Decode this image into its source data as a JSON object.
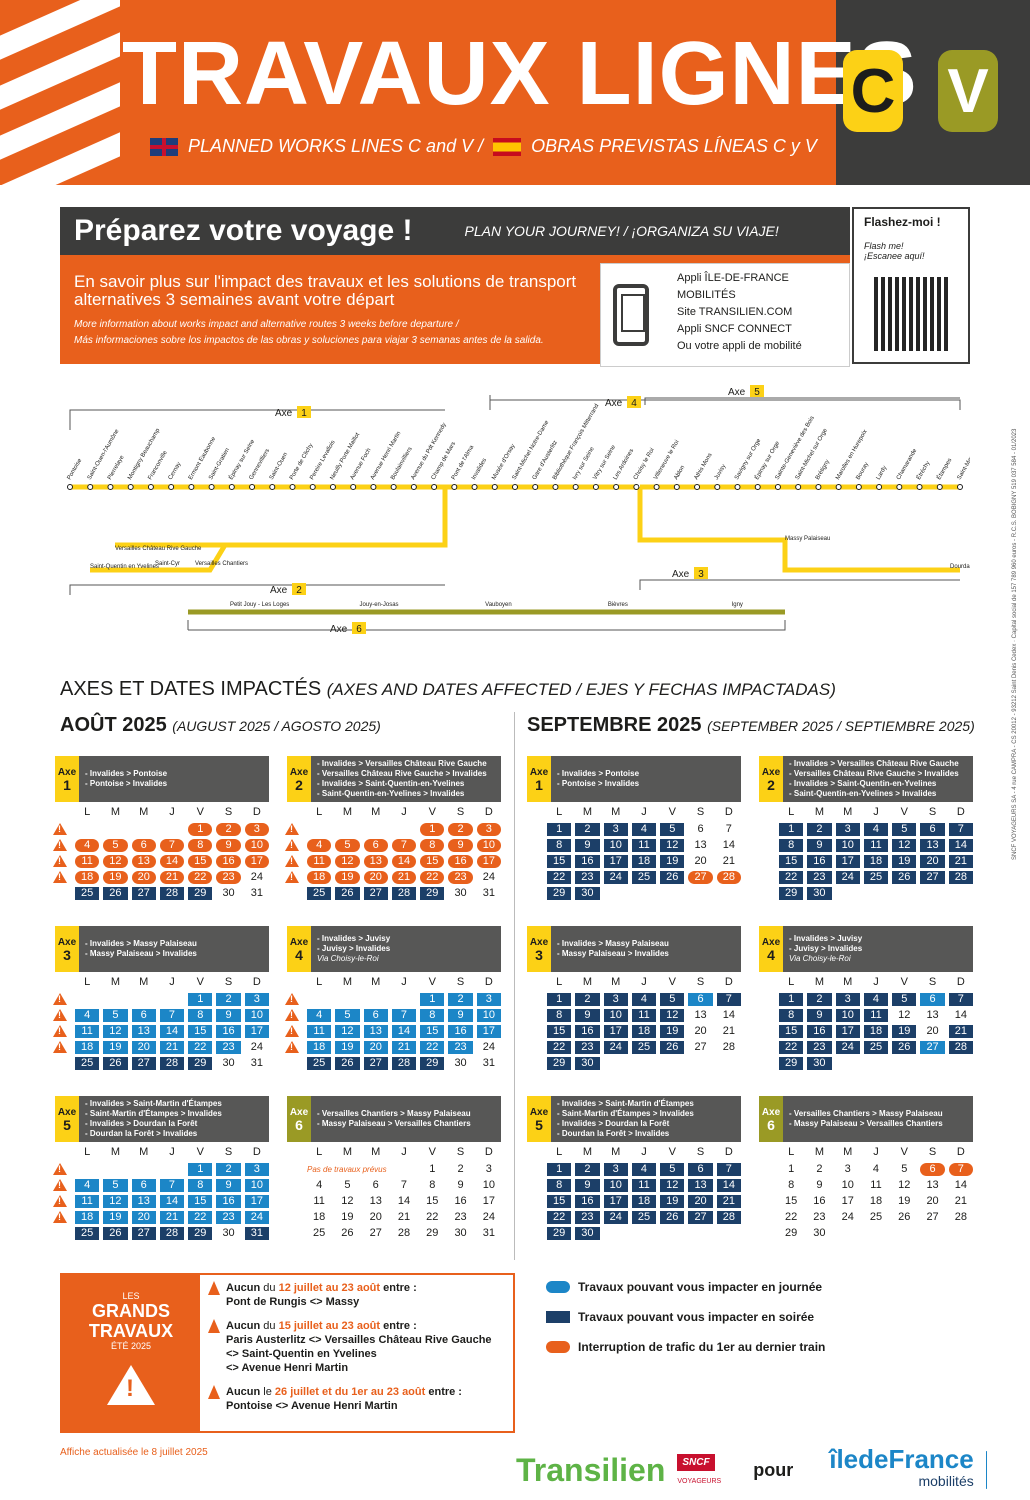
{
  "header": {
    "title": "TRAVAUX LIGNES",
    "subtitle_en": "PLANNED WORKS LINES C and V /",
    "subtitle_es": "OBRAS PREVISTAS LÍNEAS C y V",
    "line_c": "C",
    "line_v": "V"
  },
  "prepare": {
    "heading": "Préparez votre voyage !",
    "heading_sub": "PLAN YOUR JOURNEY! / ¡ORGANIZA SU VIAJE!",
    "main": "En savoir plus sur l'impact des travaux et les solutions de transport alternatives 3 semaines avant votre départ",
    "en": "More information about works impact and alternative routes 3 weeks before departure /",
    "es": "Más informaciones sobre los impactos de las obras y soluciones para viajar 3 semanas antes de la salida.",
    "apps": [
      "Appli ÎLE-DE-FRANCE MOBILITÉS",
      "Site TRANSILIEN.COM",
      "Appli SNCF CONNECT",
      "Ou votre appli de mobilité"
    ],
    "qr_title": "Flashez-moi !",
    "qr_sub1": "Flash me!",
    "qr_sub2": "¡Escanee aquí!"
  },
  "map": {
    "axes": [
      "Axe",
      "Axe",
      "Axe",
      "Axe",
      "Axe",
      "Axe"
    ],
    "axe_nums": [
      "1",
      "2",
      "3",
      "4",
      "5",
      "6"
    ],
    "stations_main": [
      "Pontoise",
      "Saint-Ouen-l'Aumône",
      "Pierrelaye",
      "Montigny Beauchamp",
      "Franconville",
      "Cernay",
      "Ermont Eaubonne",
      "Saint-Gratien",
      "Épinay sur Seine",
      "Gennevilliers",
      "Saint-Ouen",
      "Porte de Clichy",
      "Pereire Levallois",
      "Neuilly Porte Maillot",
      "Avenue Foch",
      "Avenue Henri Martin",
      "Boulainvilliers",
      "Avenue du Pdt Kennedy",
      "Champ de Mars",
      "Pont de l'Alma",
      "Invalides",
      "Musée d'Orsay",
      "Saint-Michel Notre-Dame",
      "Gare d'Austerlitz",
      "Bibliothèque François Mitterrand",
      "Ivry sur Seine",
      "Vitry sur Seine",
      "Les Ardoines",
      "Choisy le Roi",
      "Villeneuve le Roi",
      "Ablon",
      "Athis Mons",
      "Juvisy",
      "Savigny sur Orge",
      "Épinay sur Orge",
      "Sainte-Geneviève des Bois",
      "Saint-Michel sur Orge",
      "Brétigny",
      "Marolles en Hurepoix",
      "Bouray",
      "Lardy",
      "Chamarande",
      "Étréchy",
      "Étampes",
      "Saint-Martin d'Étampes"
    ],
    "stations_v": [
      "Petit Jouy - Les Loges",
      "Jouy-en-Josas",
      "Vauboyen",
      "Bièvres",
      "Igny"
    ],
    "stations_branch": [
      "Versailles Château Rive Gauche",
      "Saint-Quentin en Yvelines",
      "Saint-Cyr",
      "Versailles Chantiers",
      "Massy Palaiseau",
      "Dourdan la Forêt"
    ]
  },
  "axes_title": "AXES ET DATES IMPACTÉS",
  "axes_title_sub": "(AXES AND DATES AFFECTED / EJES Y FECHAS IMPACTADAS)",
  "days": [
    "L",
    "M",
    "M",
    "J",
    "V",
    "S",
    "D"
  ],
  "months": [
    {
      "name": "AOÛT 2025",
      "sub": "(AUGUST 2025 / AGOSTO 2025)"
    },
    {
      "name": "SEPTEMBRE 2025",
      "sub": "(SEPTEMBER 2025 / SEPTIEMBRE 2025)"
    }
  ],
  "axe_label": "Axe",
  "calendars": [
    {
      "axe": "1",
      "lines": [
        "- Invalides > Pontoise",
        "- Pontoise > Invalides"
      ],
      "start": 4,
      "len": 31,
      "i": [
        1,
        2,
        3,
        4,
        5,
        6,
        7,
        8,
        9,
        10,
        11,
        12,
        13,
        14,
        15,
        16,
        17,
        18,
        19,
        20,
        21,
        22,
        23
      ],
      "n": [
        25,
        26,
        27,
        28,
        29
      ],
      "j": [],
      "warn": 4
    },
    {
      "axe": "2",
      "lines": [
        "- Invalides > Versailles Château Rive Gauche",
        "- Versailles Château Rive Gauche > Invalides",
        "- Invalides > Saint-Quentin-en-Yvelines",
        "- Saint-Quentin-en-Yvelines > Invalides"
      ],
      "start": 4,
      "len": 31,
      "i": [
        1,
        2,
        3,
        4,
        5,
        6,
        7,
        8,
        9,
        10,
        11,
        12,
        13,
        14,
        15,
        16,
        17,
        18,
        19,
        20,
        21,
        22,
        23
      ],
      "n": [
        25,
        26,
        27,
        28,
        29
      ],
      "j": [],
      "warn": 4
    },
    {
      "axe": "1",
      "lines": [
        "- Invalides > Pontoise",
        "- Pontoise > Invalides"
      ],
      "start": 0,
      "len": 30,
      "i": [
        27,
        28
      ],
      "n": [
        1,
        2,
        3,
        4,
        5,
        8,
        9,
        10,
        11,
        12,
        15,
        16,
        17,
        18,
        19,
        22,
        23,
        24,
        25,
        26,
        29,
        30
      ],
      "j": [],
      "warn": 0
    },
    {
      "axe": "2",
      "lines": [
        "- Invalides > Versailles Château Rive Gauche",
        "- Versailles Château Rive Gauche > Invalides",
        "- Invalides > Saint-Quentin-en-Yvelines",
        "- Saint-Quentin-en-Yvelines > Invalides"
      ],
      "start": 0,
      "len": 30,
      "i": [],
      "n": [
        1,
        2,
        3,
        4,
        5,
        6,
        7,
        8,
        9,
        10,
        11,
        12,
        13,
        14,
        15,
        16,
        17,
        18,
        19,
        20,
        21,
        22,
        23,
        24,
        25,
        26,
        27,
        28,
        29,
        30
      ],
      "j": [],
      "warn": 0
    },
    {
      "axe": "3",
      "lines": [
        "- Invalides > Massy Palaiseau",
        "- Massy Palaiseau > Invalides"
      ],
      "start": 4,
      "len": 31,
      "i": [],
      "n": [
        25,
        26,
        27,
        28,
        29
      ],
      "j": [
        1,
        2,
        3,
        4,
        5,
        6,
        7,
        8,
        9,
        10,
        11,
        12,
        13,
        14,
        15,
        16,
        17,
        18,
        19,
        20,
        21,
        22,
        23
      ],
      "warn": 4
    },
    {
      "axe": "4",
      "lines": [
        "- Invalides > Juvisy",
        "- Juvisy > Invalides"
      ],
      "via": "Via Choisy-le-Roi",
      "start": 4,
      "len": 31,
      "i": [],
      "n": [
        25,
        26,
        27,
        28,
        29
      ],
      "j": [
        1,
        2,
        3,
        4,
        5,
        6,
        7,
        8,
        9,
        10,
        11,
        12,
        13,
        14,
        15,
        16,
        17,
        18,
        19,
        20,
        21,
        22,
        23
      ],
      "warn": 4
    },
    {
      "axe": "3",
      "lines": [
        "- Invalides > Massy Palaiseau",
        "- Massy Palaiseau > Invalides"
      ],
      "start": 0,
      "len": 30,
      "i": [],
      "n": [
        1,
        2,
        3,
        4,
        5,
        7,
        8,
        9,
        10,
        11,
        12,
        15,
        16,
        17,
        18,
        19,
        22,
        23,
        24,
        25,
        26,
        29,
        30
      ],
      "j": [
        6
      ],
      "warn": 0
    },
    {
      "axe": "4",
      "lines": [
        "- Invalides > Juvisy",
        "- Juvisy > Invalides"
      ],
      "via": "Via Choisy-le-Roi",
      "start": 0,
      "len": 30,
      "i": [],
      "n": [
        1,
        2,
        3,
        4,
        5,
        7,
        8,
        9,
        10,
        11,
        15,
        16,
        17,
        18,
        19,
        21,
        22,
        23,
        24,
        25,
        26,
        28,
        29,
        30
      ],
      "j": [
        6,
        27
      ],
      "warn": 0
    },
    {
      "axe": "5",
      "lines": [
        "- Invalides > Saint-Martin d'Étampes",
        "- Saint-Martin d'Étampes > Invalides",
        "- Invalides > Dourdan la Forêt",
        "- Dourdan la Forêt > Invalides"
      ],
      "start": 4,
      "len": 31,
      "i": [],
      "n": [
        25,
        26,
        27,
        28,
        29,
        31
      ],
      "j": [
        1,
        2,
        3,
        4,
        5,
        6,
        7,
        8,
        9,
        10,
        11,
        12,
        13,
        14,
        15,
        16,
        17,
        18,
        19,
        20,
        21,
        22,
        23,
        24
      ],
      "warn": 4
    },
    {
      "axe": "6",
      "v": true,
      "lines": [
        "- Versailles Chantiers > Massy Palaiseau",
        "- Massy Palaiseau > Versailles Chantiers"
      ],
      "note": "Pas de travaux prévus",
      "start": 4,
      "len": 31,
      "i": [],
      "n": [],
      "j": [],
      "warn": 0
    },
    {
      "axe": "5",
      "lines": [
        "- Invalides > Saint-Martin d'Étampes",
        "- Saint-Martin d'Étampes > Invalides",
        "- Invalides > Dourdan la Forêt",
        "- Dourdan la Forêt > Invalides"
      ],
      "start": 0,
      "len": 30,
      "i": [],
      "n": [
        1,
        2,
        3,
        4,
        5,
        6,
        7,
        8,
        9,
        10,
        11,
        12,
        13,
        14,
        15,
        16,
        17,
        18,
        19,
        20,
        21,
        22,
        23,
        24,
        25,
        26,
        27,
        28,
        29,
        30
      ],
      "j": [],
      "warn": 0
    },
    {
      "axe": "6",
      "v": true,
      "lines": [
        "- Versailles Chantiers > Massy Palaiseau",
        "- Massy Palaiseau > Versailles Chantiers"
      ],
      "start": 0,
      "len": 30,
      "i": [
        6,
        7
      ],
      "n": [],
      "j": [],
      "warn": 0
    }
  ],
  "grands": {
    "les": "LES",
    "title": "GRANDS TRAVAUX",
    "ete": "ÉTÉ 2025",
    "items": [
      {
        "a": "Aucun",
        "b": "du",
        "d": "12 juillet au 23 août",
        "c": "entre :",
        "r": [
          "Pont de Rungis <> Massy"
        ]
      },
      {
        "a": "Aucun",
        "b": "du",
        "d": "15 juillet au 23 août",
        "c": "entre :",
        "r": [
          "Paris Austerlitz <> Versailles Château Rive Gauche",
          "<> Saint-Quentin en Yvelines",
          "<> Avenue Henri Martin"
        ]
      },
      {
        "a": "Aucun",
        "b": "le",
        "d": "26 juillet et du 1er au 23 août",
        "c": "entre :",
        "r": [
          "Pontoise <> Avenue Henri Martin"
        ]
      }
    ]
  },
  "legend": [
    "Travaux pouvant vous impacter en journée",
    "Travaux pouvant vous impacter en soirée",
    "Interruption de trafic du 1er au dernier train"
  ],
  "colors": {
    "journee": "#1c86c7",
    "soiree": "#1c3f68",
    "interruption": "#e8601c"
  },
  "footer": {
    "updated": "Affiche actualisée le 8 juillet 2025",
    "transilien": "Transilien",
    "sncf": "SNCF",
    "voyageurs": "VOYAGEURS",
    "pour": "pour",
    "idf": "îledeFrance",
    "mobilites": "mobilités"
  },
  "legal": "SNCF VOYAGEURS SA - 4 rue CAMPRA - CS 20012 - 93212 Saint Denis Cedex · Capital social de 157 789 960 euros - R.C.S. BOBIGNY 519 037 584 - 01/2023"
}
